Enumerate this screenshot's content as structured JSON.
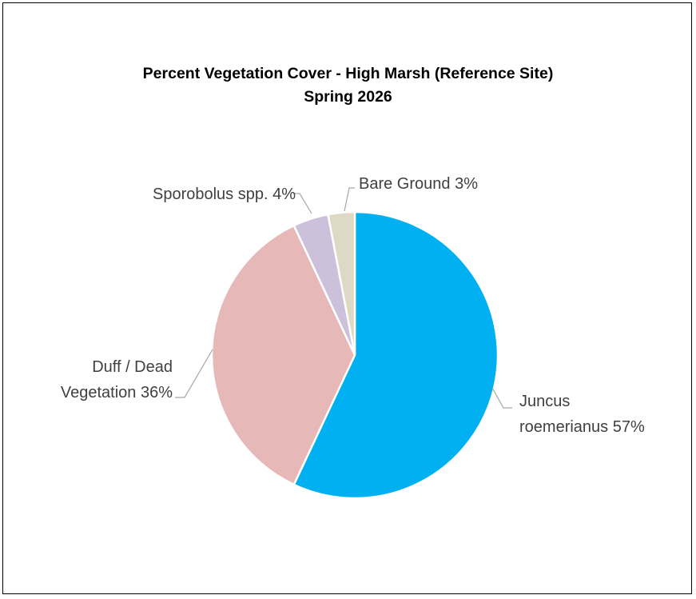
{
  "chart_data": {
    "type": "pie",
    "title": "Percent Vegetation Cover - High Marsh (Reference Site)",
    "subtitle": "Spring 2026",
    "slices": [
      {
        "label": "Juncus roemerianus",
        "label_lines": [
          "Juncus",
          "roemerianus 57%"
        ],
        "value": 57,
        "color": "#00b0f0"
      },
      {
        "label": "Duff / Dead Vegetation",
        "label_lines": [
          "Duff / Dead",
          "Vegetation 36%"
        ],
        "value": 36,
        "color": "#e6b8b7"
      },
      {
        "label": "Sporobolus spp.",
        "label_lines": [
          "Sporobolus spp. 4%"
        ],
        "value": 4,
        "color": "#ccc0da"
      },
      {
        "label": "Bare Ground",
        "label_lines": [
          "Bare Ground 3%"
        ],
        "value": 3,
        "color": "#ddd9c4"
      }
    ],
    "legend": "none",
    "data_labels": "outside with leader lines"
  }
}
